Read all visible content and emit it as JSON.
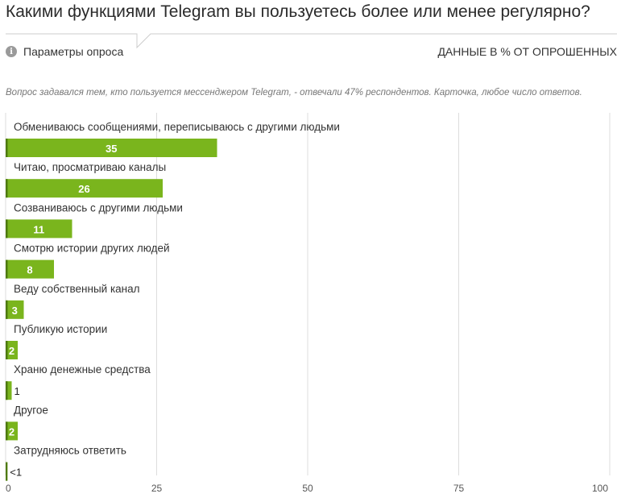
{
  "header": {
    "title": "Какими функциями Telegram вы пользуетесь более или менее регулярно?",
    "params_label": "Параметры опроса",
    "units_label": "ДАННЫЕ В % ОТ ОПРОШЕННЫХ",
    "info_icon": "info-icon",
    "note": "Вопрос задавался тем, кто пользуется мессенджером Telegram, - отвечали 47% респондентов. Карточка, любое число ответов."
  },
  "colors": {
    "bar": "#7ab51d",
    "bar_left_edge": "#4e7a10",
    "grid": "#dddddd"
  },
  "chart_data": {
    "type": "bar",
    "orientation": "horizontal",
    "categories": [
      "Обмениваюсь сообщениями, переписываюсь с другими людьми",
      "Читаю, просматриваю каналы",
      "Созваниваюсь с другими людьми",
      "Смотрю истории других людей",
      "Веду собственный канал",
      "Публикую истории",
      "Храню денежные средства",
      "Другое",
      "Затрудняюсь ответить"
    ],
    "values": [
      35,
      26,
      11,
      8,
      3,
      2,
      1,
      2,
      0.3
    ],
    "value_labels": [
      "35",
      "26",
      "11",
      "8",
      "3",
      "2",
      "1",
      "2",
      "<1"
    ],
    "xlim": [
      0,
      100
    ],
    "ticks": [
      "0",
      "25",
      "50",
      "75",
      "100"
    ],
    "grid": true
  }
}
